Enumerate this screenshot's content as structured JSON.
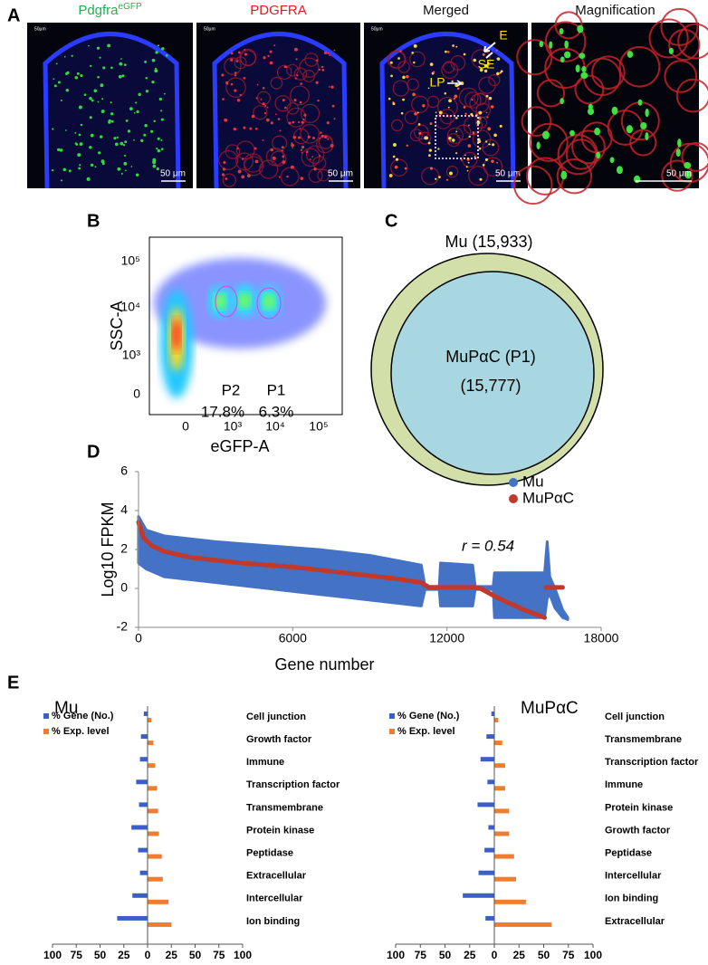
{
  "panel_a": {
    "label": "A",
    "images": [
      {
        "title": "Pdgfra",
        "title_superscript": "eGFP",
        "corner_label": "50μm",
        "scale_bar": "50 μm"
      },
      {
        "title": "PDGFRA",
        "corner_label": "50μm",
        "scale_bar": "50 μm"
      },
      {
        "title": "Merged",
        "corner_label": "50μm",
        "scale_bar": "50 μm"
      },
      {
        "title": "Magnification",
        "scale_bar": "50 μm"
      }
    ],
    "annotations": [
      "E",
      "SE",
      "LP"
    ]
  },
  "panel_b": {
    "label": "B",
    "y_label": "SSC-A",
    "x_label": "eGFP-A",
    "yticks": [
      "10⁵",
      "10⁴",
      "10³",
      "0"
    ],
    "xticks": [
      "0",
      "10³",
      "10⁴",
      "10⁵"
    ],
    "gates": [
      {
        "name": "P2",
        "percent": "17.8%"
      },
      {
        "name": "P1",
        "percent": "6.3%"
      }
    ]
  },
  "panel_c": {
    "label": "C",
    "outer": "Mu (15,933)",
    "inner": [
      "MuPαC (P1)",
      "(15,777)"
    ]
  },
  "panel_d_label": "D",
  "panel_e_label": "E",
  "chart_data": [
    {
      "type": "scatter",
      "x_label": "Gene number",
      "y_label": "Log10 FPKM",
      "annotation": "r = 0.54",
      "xlim": [
        0,
        18000
      ],
      "xticks": [
        0,
        6000,
        12000,
        18000
      ],
      "ylim": [
        -2,
        6
      ],
      "yticks": [
        -2,
        0,
        2,
        4,
        6
      ],
      "legend": "top-right",
      "series": [
        {
          "name": "Mu",
          "color": "#4472c4",
          "x": [
            0,
            300,
            1000,
            3000,
            5000,
            7000,
            9000,
            11000,
            11150,
            11700,
            11750,
            13000,
            13100,
            13800,
            13850,
            15800,
            15900,
            16000,
            16200,
            16500,
            16700
          ],
          "low": [
            1.3,
            1.0,
            0.6,
            0.3,
            0.0,
            -0.3,
            -0.6,
            -0.9,
            -0.05,
            -0.05,
            -0.9,
            -0.9,
            -0.05,
            -0.05,
            -1.5,
            -1.5,
            -0.5,
            -0.3,
            -1.0,
            -1.5,
            -1.6
          ],
          "high": [
            3.7,
            3.0,
            2.7,
            2.4,
            2.2,
            2.0,
            1.7,
            1.2,
            0.1,
            0.1,
            1.3,
            1.2,
            0.1,
            0.1,
            0.8,
            0.8,
            2.4,
            0.6,
            0.0,
            -1.1,
            -1.5
          ]
        },
        {
          "name": "MuPαC",
          "color": "#c0392b",
          "x": [
            0,
            200,
            500,
            1000,
            2000,
            4000,
            6000,
            8000,
            10000,
            11000,
            11300,
            13100,
            13300,
            14000,
            15000,
            15800,
            15820,
            15850,
            16500
          ],
          "values": [
            3.4,
            2.6,
            2.2,
            1.9,
            1.6,
            1.3,
            1.1,
            0.8,
            0.5,
            0.3,
            0.05,
            0.05,
            0,
            -0.5,
            -1.1,
            -1.5,
            null,
            0.05,
            0.05
          ]
        }
      ]
    },
    {
      "type": "bar",
      "title": "Mu",
      "categories": [
        "Cell junction",
        "Growth factor",
        "Immune",
        "Transcription factor",
        "Transmembrane",
        "Protein kinase",
        "Peptidase",
        "Extracellular",
        "Intercellular",
        "Ion binding"
      ],
      "xlim": [
        -100,
        100
      ],
      "xticks": [
        {
          "value": -100,
          "label": "100"
        },
        {
          "value": -75,
          "label": "75"
        },
        {
          "value": -50,
          "label": "50"
        },
        {
          "value": -25,
          "label": "25"
        },
        0,
        25,
        50,
        75,
        100
      ],
      "legend": "top-left",
      "series": [
        {
          "name": "% Gene (No.)",
          "color": "#3a5fc8",
          "values": [
            -4,
            -7,
            -8,
            -12,
            -9,
            -17,
            -10,
            -8,
            -16,
            -32
          ]
        },
        {
          "name": "% Exp. level",
          "color": "#ed7d31",
          "values": [
            4,
            6,
            8,
            10,
            11,
            12,
            15,
            16,
            22,
            25
          ]
        }
      ]
    },
    {
      "type": "bar",
      "title": "MuPαC",
      "categories": [
        "Cell junction",
        "Transmembrane",
        "Transcription factor",
        "Immune",
        "Protein kinase",
        "Growth factor",
        "Peptidase",
        "Intercellular",
        "Ion binding",
        "Extracellular"
      ],
      "xlim": [
        -100,
        100
      ],
      "xticks": [
        {
          "value": -100,
          "label": "100"
        },
        {
          "value": -75,
          "label": "75"
        },
        {
          "value": -50,
          "label": "50"
        },
        {
          "value": -25,
          "label": "25"
        },
        0,
        25,
        50,
        75,
        100
      ],
      "legend": "top-left",
      "series": [
        {
          "name": "% Gene (No.)",
          "color": "#3a5fc8",
          "values": [
            -3,
            -8,
            -14,
            -7,
            -17,
            -6,
            -10,
            -16,
            -32,
            -9
          ]
        },
        {
          "name": "% Exp. level",
          "color": "#ed7d31",
          "values": [
            4,
            8,
            11,
            11,
            15,
            15,
            20,
            22,
            32,
            58
          ]
        }
      ]
    }
  ]
}
